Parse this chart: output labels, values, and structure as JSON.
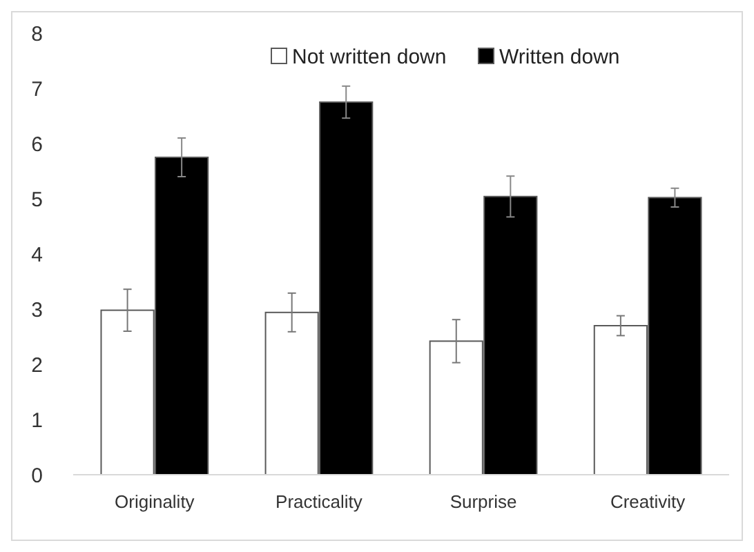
{
  "chart_data": {
    "type": "bar",
    "categories": [
      "Originality",
      "Practicality",
      "Surprise",
      "Creativity"
    ],
    "series": [
      {
        "name": "Not written down",
        "color": "#ffffff",
        "values": [
          2.98,
          2.94,
          2.42,
          2.7
        ],
        "errors": [
          0.38,
          0.35,
          0.39,
          0.18
        ]
      },
      {
        "name": "Written down",
        "color": "#000000",
        "values": [
          5.75,
          6.75,
          5.04,
          5.02
        ],
        "errors": [
          0.35,
          0.29,
          0.37,
          0.17
        ]
      }
    ],
    "ylim": [
      0,
      8
    ],
    "yticks": [
      0,
      1,
      2,
      3,
      4,
      5,
      6,
      7,
      8
    ],
    "grid": false,
    "legend": "top"
  }
}
